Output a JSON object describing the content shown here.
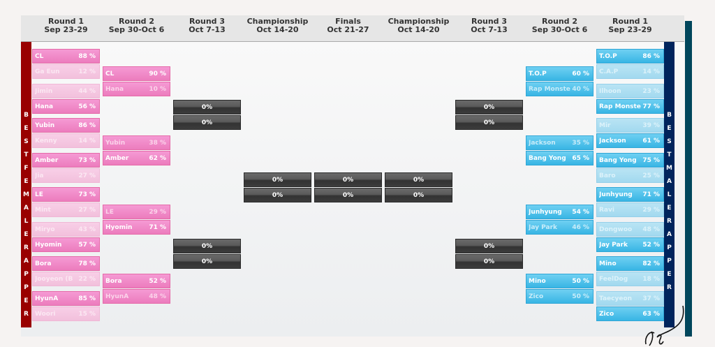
{
  "header": [
    {
      "round": "Round 1",
      "dates": "Sep 23-29"
    },
    {
      "round": "Round 2",
      "dates": "Sep 30-Oct 6"
    },
    {
      "round": "Round 3",
      "dates": "Oct 7-13"
    },
    {
      "round": "Championship",
      "dates": "Oct 14-20"
    },
    {
      "round": "Finals",
      "dates": "Oct 21-27"
    },
    {
      "round": "Championship",
      "dates": "Oct 14-20"
    },
    {
      "round": "Round 3",
      "dates": "Oct 7-13"
    },
    {
      "round": "Round 2",
      "dates": "Sep 30-Oct 6"
    },
    {
      "round": "Round 1",
      "dates": "Sep 23-29"
    }
  ],
  "left_label": "BESTFEMALERAPPER",
  "right_label": "BESTMALERAPPER",
  "colors": {
    "female": "#ec7cbd",
    "male": "#38b5e4",
    "female_bar": "#990000",
    "male_bar": "#00245c",
    "pending": "#4a4a4a"
  },
  "left": {
    "round1": [
      [
        {
          "name": "CL",
          "pct": "88 %",
          "winner": true
        },
        {
          "name": "Ga Eun",
          "pct": "12 %",
          "winner": false
        }
      ],
      [
        {
          "name": "Jimin",
          "pct": "44 %",
          "winner": false
        },
        {
          "name": "Hana",
          "pct": "56 %",
          "winner": true
        }
      ],
      [
        {
          "name": "Yubin",
          "pct": "86 %",
          "winner": true
        },
        {
          "name": "Kenny",
          "pct": "14 %",
          "winner": false
        }
      ],
      [
        {
          "name": "Amber",
          "pct": "73 %",
          "winner": true
        },
        {
          "name": "Jia",
          "pct": "27 %",
          "winner": false
        }
      ],
      [
        {
          "name": "LE",
          "pct": "73 %",
          "winner": true
        },
        {
          "name": "Mint",
          "pct": "27 %",
          "winner": false
        }
      ],
      [
        {
          "name": "Miryo",
          "pct": "43 %",
          "winner": false
        },
        {
          "name": "Hyomin",
          "pct": "57 %",
          "winner": true
        }
      ],
      [
        {
          "name": "Bora",
          "pct": "78 %",
          "winner": true
        },
        {
          "name": "Jooyeon (B",
          "pct": "22 %",
          "winner": false
        }
      ],
      [
        {
          "name": "HyunA",
          "pct": "85 %",
          "winner": true
        },
        {
          "name": "Woori",
          "pct": "15 %",
          "winner": false
        }
      ]
    ],
    "round2": [
      [
        {
          "name": "CL",
          "pct": "90 %",
          "winner": true
        },
        {
          "name": "Hana",
          "pct": "10 %",
          "winner": false
        }
      ],
      [
        {
          "name": "Yubin",
          "pct": "38 %",
          "winner": false
        },
        {
          "name": "Amber",
          "pct": "62 %",
          "winner": true
        }
      ],
      [
        {
          "name": "LE",
          "pct": "29 %",
          "winner": false
        },
        {
          "name": "Hyomin",
          "pct": "71 %",
          "winner": true
        }
      ],
      [
        {
          "name": "Bora",
          "pct": "52 %",
          "winner": true
        },
        {
          "name": "HyunA",
          "pct": "48 %",
          "winner": false
        }
      ]
    ],
    "round3": [
      [
        {
          "pct": "0%"
        },
        {
          "pct": "0%"
        }
      ],
      [
        {
          "pct": "0%"
        },
        {
          "pct": "0%"
        }
      ]
    ],
    "championship": [
      [
        {
          "pct": "0%"
        },
        {
          "pct": "0%"
        }
      ]
    ]
  },
  "finals": [
    [
      {
        "pct": "0%"
      },
      {
        "pct": "0%"
      }
    ]
  ],
  "right": {
    "round1": [
      [
        {
          "name": "T.O.P",
          "pct": "86 %",
          "winner": true
        },
        {
          "name": "C.A.P",
          "pct": "14 %",
          "winner": false
        }
      ],
      [
        {
          "name": "Ilhoon",
          "pct": "23 %",
          "winner": false
        },
        {
          "name": "Rap Monste",
          "pct": "77 %",
          "winner": true
        }
      ],
      [
        {
          "name": "Mir",
          "pct": "39 %",
          "winner": false
        },
        {
          "name": "Jackson",
          "pct": "61 %",
          "winner": true
        }
      ],
      [
        {
          "name": "Bang Yong",
          "pct": "75 %",
          "winner": true
        },
        {
          "name": "Baro",
          "pct": "25 %",
          "winner": false
        }
      ],
      [
        {
          "name": "Junhyung",
          "pct": "71 %",
          "winner": true
        },
        {
          "name": "Ravi",
          "pct": "29 %",
          "winner": false
        }
      ],
      [
        {
          "name": "Dongwoo",
          "pct": "48 %",
          "winner": false
        },
        {
          "name": "Jay Park",
          "pct": "52 %",
          "winner": true
        }
      ],
      [
        {
          "name": "Mino",
          "pct": "82 %",
          "winner": true
        },
        {
          "name": "FeelDog",
          "pct": "18 %",
          "winner": false
        }
      ],
      [
        {
          "name": "Taecyeon",
          "pct": "37 %",
          "winner": false
        },
        {
          "name": "Zico",
          "pct": "63 %",
          "winner": true
        }
      ]
    ],
    "round2": [
      [
        {
          "name": "T.O.P",
          "pct": "60 %",
          "winner": true
        },
        {
          "name": "Rap Monste",
          "pct": "40 %",
          "winner": false
        }
      ],
      [
        {
          "name": "Jackson",
          "pct": "35 %",
          "winner": false
        },
        {
          "name": "Bang Yong",
          "pct": "65 %",
          "winner": true
        }
      ],
      [
        {
          "name": "Junhyung",
          "pct": "54 %",
          "winner": true
        },
        {
          "name": "Jay Park",
          "pct": "46 %",
          "winner": false
        }
      ],
      [
        {
          "name": "Mino",
          "pct": "50 %",
          "winner": true
        },
        {
          "name": "Zico",
          "pct": "50 %",
          "winner": false
        }
      ]
    ],
    "round3": [
      [
        {
          "pct": "0%"
        },
        {
          "pct": "0%"
        }
      ],
      [
        {
          "pct": "0%"
        },
        {
          "pct": "0%"
        }
      ]
    ],
    "championship": [
      [
        {
          "pct": "0%"
        },
        {
          "pct": "0%"
        }
      ]
    ]
  }
}
